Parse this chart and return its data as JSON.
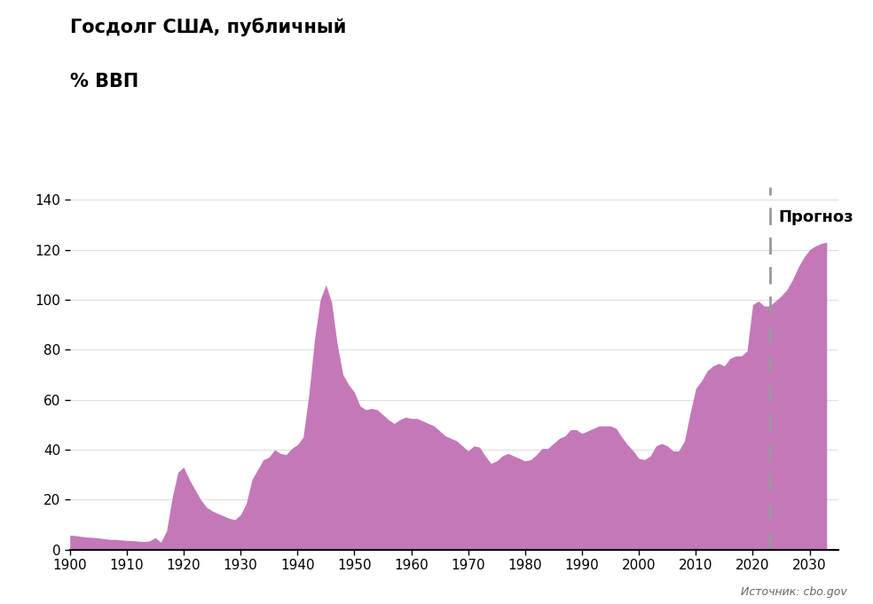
{
  "title_line1": "Госдолг США, публичный",
  "title_line2": "% ВВП",
  "source": "Источник: cbo.gov",
  "forecast_label": "Прогноз",
  "forecast_year": 2023,
  "fill_color": "#C478B8",
  "fill_alpha": 1.0,
  "background_color": "#FFFFFF",
  "ylim": [
    0,
    145
  ],
  "xlim": [
    1900,
    2035
  ],
  "yticks": [
    0,
    20,
    40,
    60,
    80,
    100,
    120,
    140
  ],
  "xticks": [
    1900,
    1910,
    1920,
    1930,
    1940,
    1950,
    1960,
    1970,
    1980,
    1990,
    2000,
    2010,
    2020,
    2030
  ],
  "years": [
    1900,
    1901,
    1902,
    1903,
    1904,
    1905,
    1906,
    1907,
    1908,
    1909,
    1910,
    1911,
    1912,
    1913,
    1914,
    1915,
    1916,
    1917,
    1918,
    1919,
    1920,
    1921,
    1922,
    1923,
    1924,
    1925,
    1926,
    1927,
    1928,
    1929,
    1930,
    1931,
    1932,
    1933,
    1934,
    1935,
    1936,
    1937,
    1938,
    1939,
    1940,
    1941,
    1942,
    1943,
    1944,
    1945,
    1946,
    1947,
    1948,
    1949,
    1950,
    1951,
    1952,
    1953,
    1954,
    1955,
    1956,
    1957,
    1958,
    1959,
    1960,
    1961,
    1962,
    1963,
    1964,
    1965,
    1966,
    1967,
    1968,
    1969,
    1970,
    1971,
    1972,
    1973,
    1974,
    1975,
    1976,
    1977,
    1978,
    1979,
    1980,
    1981,
    1982,
    1983,
    1984,
    1985,
    1986,
    1987,
    1988,
    1989,
    1990,
    1991,
    1992,
    1993,
    1994,
    1995,
    1996,
    1997,
    1998,
    1999,
    2000,
    2001,
    2002,
    2003,
    2004,
    2005,
    2006,
    2007,
    2008,
    2009,
    2010,
    2011,
    2012,
    2013,
    2014,
    2015,
    2016,
    2017,
    2018,
    2019,
    2020,
    2021,
    2022,
    2023,
    2024,
    2025,
    2026,
    2027,
    2028,
    2029,
    2030,
    2031,
    2032,
    2033
  ],
  "values": [
    5.8,
    5.6,
    5.3,
    5.0,
    4.9,
    4.7,
    4.4,
    4.1,
    4.1,
    3.9,
    3.7,
    3.6,
    3.4,
    3.2,
    3.5,
    4.8,
    3.0,
    7.5,
    21.0,
    31.0,
    33.0,
    28.0,
    24.0,
    20.0,
    17.0,
    15.5,
    14.5,
    13.5,
    12.5,
    12.0,
    14.0,
    18.5,
    28.0,
    32.0,
    36.0,
    37.0,
    40.0,
    38.5,
    38.0,
    40.5,
    42.0,
    45.0,
    62.0,
    84.0,
    100.0,
    106.0,
    99.0,
    82.0,
    70.0,
    66.0,
    63.0,
    57.5,
    56.0,
    56.5,
    56.0,
    54.0,
    52.0,
    50.5,
    52.0,
    53.0,
    52.5,
    52.5,
    51.5,
    50.5,
    49.5,
    47.5,
    45.5,
    44.5,
    43.5,
    41.5,
    39.5,
    41.5,
    41.0,
    37.5,
    34.5,
    35.5,
    37.5,
    38.5,
    37.5,
    36.5,
    35.5,
    36.0,
    38.0,
    40.5,
    40.5,
    42.5,
    44.5,
    45.5,
    48.0,
    48.0,
    46.5,
    47.5,
    48.5,
    49.5,
    49.5,
    49.5,
    48.5,
    45.0,
    42.0,
    39.5,
    36.5,
    36.0,
    37.5,
    41.5,
    42.5,
    41.5,
    39.5,
    39.5,
    43.5,
    54.5,
    64.5,
    67.5,
    71.5,
    73.5,
    74.5,
    73.5,
    76.5,
    77.5,
    77.5,
    79.5,
    98.0,
    99.5,
    97.5,
    97.5,
    99.5,
    101.5,
    104.0,
    108.0,
    113.0,
    117.0,
    120.0,
    121.5,
    122.5,
    123.0
  ]
}
